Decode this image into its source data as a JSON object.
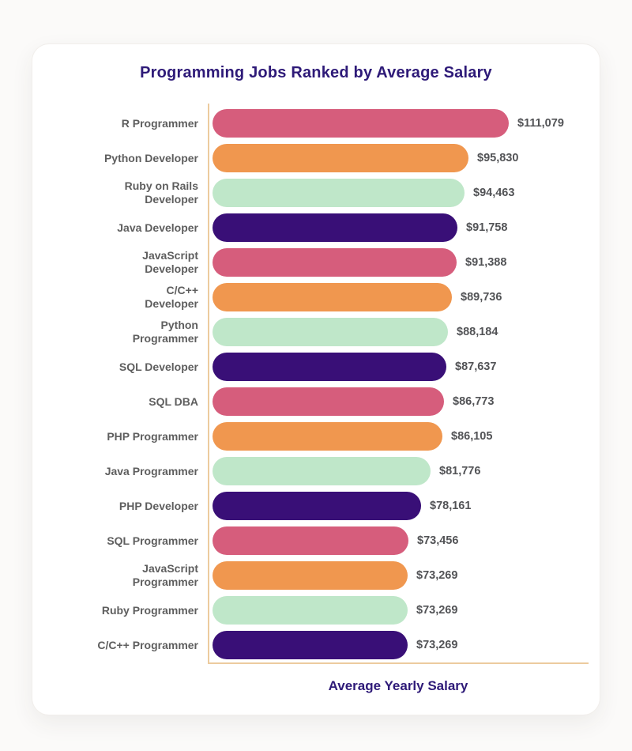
{
  "page": {
    "background_color": "#fbfaf9",
    "card_background_color": "#ffffff"
  },
  "styles": {
    "title_color": "#2e1a78",
    "axis_line_color": "#eccb9e",
    "category_label_color": "#5e5e5e",
    "value_label_color": "#525356",
    "palette": {
      "pink": "#d65d7c",
      "orange": "#f0974f",
      "mint": "#bfe7c9",
      "purple": "#390f77"
    }
  },
  "chart_data": {
    "type": "bar",
    "orientation": "horizontal",
    "title": "Programming Jobs Ranked by Average Salary",
    "xlabel": "Average Yearly Salary",
    "ylabel": "",
    "grid": false,
    "legend": null,
    "xlim": [
      0,
      115000
    ],
    "categories": [
      "R Programmer",
      "Python Developer",
      "Ruby on Rails Developer",
      "Java Developer",
      "JavaScript Developer",
      "C/C++ Developer",
      "Python Programmer",
      "SQL Developer",
      "SQL DBA",
      "PHP Programmer",
      "Java Programmer",
      "PHP Developer",
      "SQL Programmer",
      "JavaScript Programmer",
      "Ruby Programmer",
      "C/C++ Programmer"
    ],
    "display_labels": [
      "R Programmer",
      "Python Developer",
      "Ruby on Rails\nDeveloper",
      "Java Developer",
      "JavaScript\nDeveloper",
      "C/C++\nDeveloper",
      "Python\nProgrammer",
      "SQL Developer",
      "SQL DBA",
      "PHP Programmer",
      "Java Programmer",
      "PHP Developer",
      "SQL Programmer",
      "JavaScript\nProgrammer",
      "Ruby Programmer",
      "C/C++ Programmer"
    ],
    "values": [
      111079,
      95830,
      94463,
      91758,
      91388,
      89736,
      88184,
      87637,
      86773,
      86105,
      81776,
      78161,
      73456,
      73269,
      73269,
      73269
    ],
    "value_labels": [
      "$111,079",
      "$95,830",
      "$94,463",
      "$91,758",
      "$91,388",
      "$89,736",
      "$88,184",
      "$87,637",
      "$86,773",
      "$86,105",
      "$81,776",
      "$78,161",
      "$73,456",
      "$73,269",
      "$73,269",
      "$73,269"
    ],
    "bar_colors": [
      "#d65d7c",
      "#f0974f",
      "#bfe7c9",
      "#390f77",
      "#d65d7c",
      "#f0974f",
      "#bfe7c9",
      "#390f77",
      "#d65d7c",
      "#f0974f",
      "#bfe7c9",
      "#390f77",
      "#d65d7c",
      "#f0974f",
      "#bfe7c9",
      "#390f77"
    ]
  }
}
